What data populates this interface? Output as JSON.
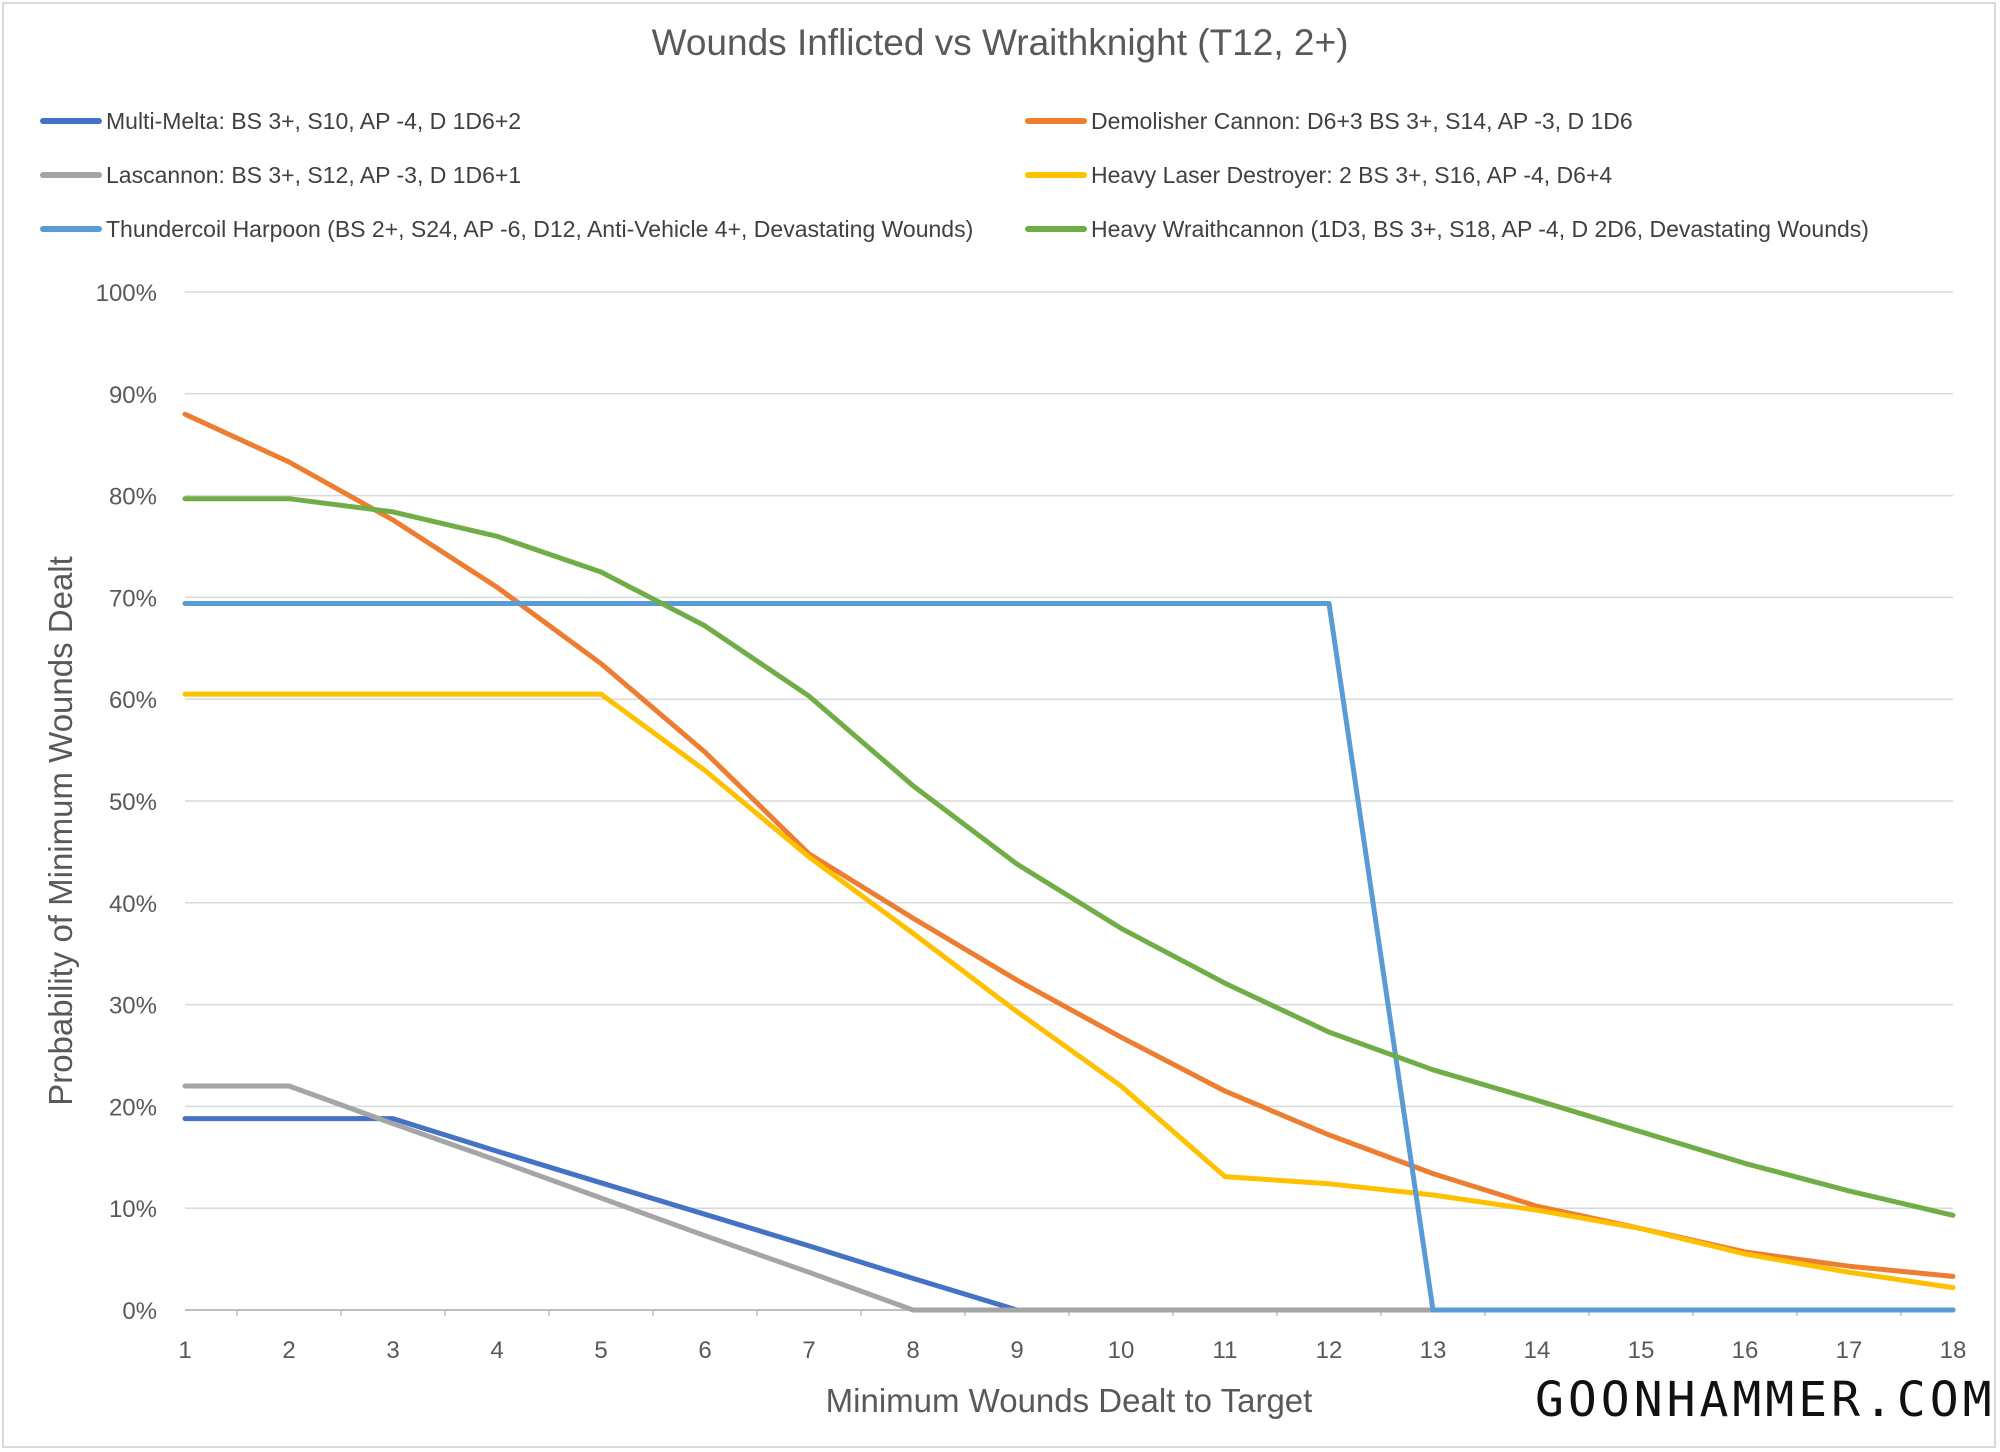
{
  "chart_data": {
    "type": "line",
    "title": "Wounds Inflicted vs Wraithknight (T12, 2+)",
    "xlabel": "Minimum Wounds Dealt to Target",
    "ylabel": "Probability of Minimum Wounds Dealt",
    "x": [
      1,
      2,
      3,
      4,
      5,
      6,
      7,
      8,
      9,
      10,
      11,
      12,
      13,
      14,
      15,
      16,
      17,
      18
    ],
    "x_tick_labels": [
      "1",
      "2",
      "3",
      "4",
      "5",
      "6",
      "7",
      "8",
      "9",
      "10",
      "11",
      "12",
      "13",
      "14",
      "15",
      "16",
      "17",
      "18"
    ],
    "ylim": [
      0,
      1
    ],
    "y_tick_labels": [
      "0%",
      "10%",
      "20%",
      "30%",
      "40%",
      "50%",
      "60%",
      "70%",
      "80%",
      "90%",
      "100%"
    ],
    "grid": "horizontal",
    "legend_position": "top",
    "series": [
      {
        "name": "Multi-Melta: BS 3+, S10, AP -4, D 1D6+2",
        "color": "#4472C4",
        "values": [
          0.188,
          0.188,
          0.188,
          0.156,
          0.125,
          0.094,
          0.063,
          0.031,
          0.0,
          0.0,
          0.0,
          0.0,
          0.0,
          0.0,
          0.0,
          0.0,
          0.0,
          0.0
        ]
      },
      {
        "name": "Demolisher Cannon: D6+3 BS 3+, S14, AP -3, D 1D6",
        "color": "#ED7D31",
        "values": [
          0.88,
          0.833,
          0.776,
          0.71,
          0.635,
          0.548,
          0.448,
          0.385,
          0.324,
          0.268,
          0.215,
          0.172,
          0.134,
          0.102,
          0.08,
          0.057,
          0.043,
          0.033
        ]
      },
      {
        "name": "Lascannon: BS 3+, S12, AP -3, D 1D6+1",
        "color": "#A5A5A5",
        "values": [
          0.22,
          0.22,
          0.183,
          0.147,
          0.11,
          0.073,
          0.037,
          0.0,
          0.0,
          0.0,
          0.0,
          0.0,
          0.0,
          0.0,
          0.0,
          0.0,
          0.0,
          0.0
        ]
      },
      {
        "name": "Heavy Laser Destroyer: 2 BS 3+, S16, AP -4, D6+4",
        "color": "#FFC000",
        "values": [
          0.605,
          0.605,
          0.605,
          0.605,
          0.605,
          0.53,
          0.445,
          0.37,
          0.293,
          0.22,
          0.131,
          0.124,
          0.113,
          0.098,
          0.08,
          0.055,
          0.037,
          0.022
        ]
      },
      {
        "name": "Thundercoil Harpoon (BS 2+, S24, AP -6, D12, Anti-Vehicle 4+, Devastating Wounds)",
        "color": "#5B9BD5",
        "values": [
          0.694,
          0.694,
          0.694,
          0.694,
          0.694,
          0.694,
          0.694,
          0.694,
          0.694,
          0.694,
          0.694,
          0.694,
          0.0,
          0.0,
          0.0,
          0.0,
          0.0,
          0.0
        ]
      },
      {
        "name": "Heavy Wraithcannon (1D3, BS 3+, S18, AP -4, D 2D6, Devastating Wounds)",
        "color": "#70AD47",
        "values": [
          0.797,
          0.797,
          0.784,
          0.76,
          0.725,
          0.672,
          0.603,
          0.515,
          0.438,
          0.375,
          0.321,
          0.273,
          0.236,
          0.206,
          0.175,
          0.144,
          0.117,
          0.093
        ]
      }
    ]
  },
  "watermark": "GOONHAMMER.COM"
}
